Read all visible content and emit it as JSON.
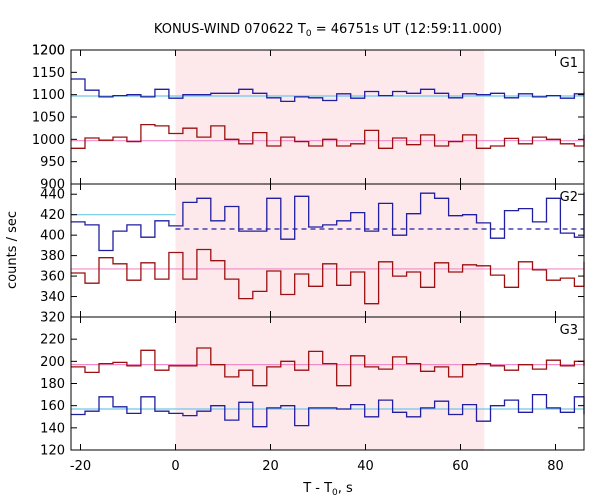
{
  "chart_data": {
    "type": "line",
    "title": "KONUS-WIND 070622 T",
    "title_sub": "0",
    "title_rest": " = 46751s UT (12:59:11.000)",
    "xlabel": "T - T",
    "xlabel_sub": "0",
    "xlabel_rest": ", s",
    "ylabel": "counts / sec",
    "xlim": [
      -22,
      86
    ],
    "xticks": [
      -20,
      0,
      20,
      40,
      60,
      80
    ],
    "highlight_interval": [
      0,
      65
    ],
    "colors": {
      "blue": "#1f1fa0",
      "red": "#9b1010",
      "blue_bg": "#6fc8e8",
      "red_bg": "#f08cc8",
      "shade": "#fde8ec"
    },
    "step": 2.944,
    "x_start": -22,
    "panels": [
      {
        "label": "G1",
        "ylim": [
          900,
          1200
        ],
        "yticks": [
          900,
          950,
          1000,
          1050,
          1100,
          1150,
          1200
        ],
        "bg_blue": 1097,
        "bg_red": 997,
        "dashed_blue": null,
        "blue": [
          1135,
          1110,
          1095,
          1098,
          1100,
          1095,
          1112,
          1092,
          1100,
          1100,
          1103,
          1103,
          1112,
          1103,
          1093,
          1085,
          1095,
          1093,
          1087,
          1102,
          1092,
          1107,
          1098,
          1107,
          1103,
          1112,
          1103,
          1093,
          1102,
          1100,
          1103,
          1093,
          1102,
          1095,
          1098,
          1092,
          1102,
          1105,
          1093,
          1097,
          1085,
          1093,
          1087,
          1123,
          1100,
          1093,
          1108,
          1093,
          1087,
          1100,
          1100,
          1095,
          1103,
          1103,
          1108,
          1100
        ],
        "red": [
          980,
          1003,
          998,
          1005,
          995,
          1033,
          1030,
          1013,
          1025,
          1005,
          1030,
          1000,
          990,
          1015,
          985,
          1005,
          995,
          985,
          1000,
          985,
          990,
          1020,
          980,
          1003,
          988,
          1010,
          985,
          995,
          1010,
          980,
          985,
          1002,
          990,
          1005,
          1000,
          990,
          985,
          1010,
          985,
          1025,
          1010,
          995,
          1020,
          995,
          1000,
          1005,
          985,
          1005,
          980,
          965,
          1030,
          995,
          1000,
          1005,
          965,
          975
        ],
        "blue_hold": 1102,
        "red_hold": 1000
      },
      {
        "label": "G2",
        "ylim": [
          320,
          450
        ],
        "yticks": [
          320,
          340,
          360,
          380,
          400,
          420,
          440
        ],
        "bg_blue": 420,
        "bg_red": 367,
        "dashed_blue": 406,
        "blue": [
          413,
          410,
          385,
          404,
          410,
          398,
          414,
          409,
          432,
          436,
          414,
          428,
          404,
          404,
          436,
          396,
          438,
          408,
          410,
          414,
          422,
          404,
          431,
          400,
          421,
          441,
          436,
          419,
          420,
          412,
          397,
          424,
          426,
          413,
          436,
          402,
          398,
          442,
          441,
          421,
          409,
          400,
          396,
          406,
          409,
          407,
          400,
          396,
          384,
          407,
          427,
          400,
          411
        ],
        "red": [
          363,
          353,
          378,
          372,
          356,
          373,
          357,
          383,
          357,
          386,
          375,
          357,
          338,
          345,
          365,
          342,
          362,
          350,
          372,
          351,
          364,
          333,
          374,
          360,
          364,
          349,
          373,
          364,
          371,
          370,
          361,
          349,
          374,
          366,
          356,
          358,
          350,
          374,
          371,
          354,
          368,
          364,
          356,
          367,
          357,
          361,
          370,
          355,
          374,
          350,
          366,
          366,
          354
        ],
        "blue_hold": 407,
        "red_hold": 363
      },
      {
        "label": "G3",
        "ylim": [
          120,
          240
        ],
        "yticks": [
          120,
          140,
          160,
          180,
          200,
          220
        ],
        "bg_blue": 157,
        "bg_red": 197,
        "dashed_blue": null,
        "blue": [
          152,
          155,
          168,
          159,
          153,
          168,
          155,
          153,
          151,
          155,
          160,
          147,
          163,
          141,
          158,
          160,
          142,
          158,
          158,
          157,
          161,
          150,
          165,
          154,
          150,
          158,
          164,
          152,
          161,
          146,
          160,
          165,
          154,
          170,
          158,
          154,
          168,
          152,
          162,
          162,
          149,
          160,
          160,
          145,
          174,
          154,
          162,
          155,
          154,
          149,
          158,
          160,
          155,
          163,
          165,
          155
        ],
        "red": [
          195,
          190,
          198,
          199,
          196,
          210,
          192,
          196,
          196,
          212,
          197,
          186,
          192,
          178,
          195,
          200,
          192,
          209,
          198,
          178,
          205,
          195,
          193,
          204,
          198,
          191,
          195,
          186,
          197,
          198,
          196,
          192,
          197,
          193,
          201,
          196,
          200,
          196,
          202,
          202,
          196,
          196,
          202,
          195,
          205,
          196,
          210,
          198,
          208,
          198,
          195,
          203,
          199,
          195,
          207,
          199
        ],
        "blue_hold": 158,
        "red_hold": 196
      }
    ]
  }
}
